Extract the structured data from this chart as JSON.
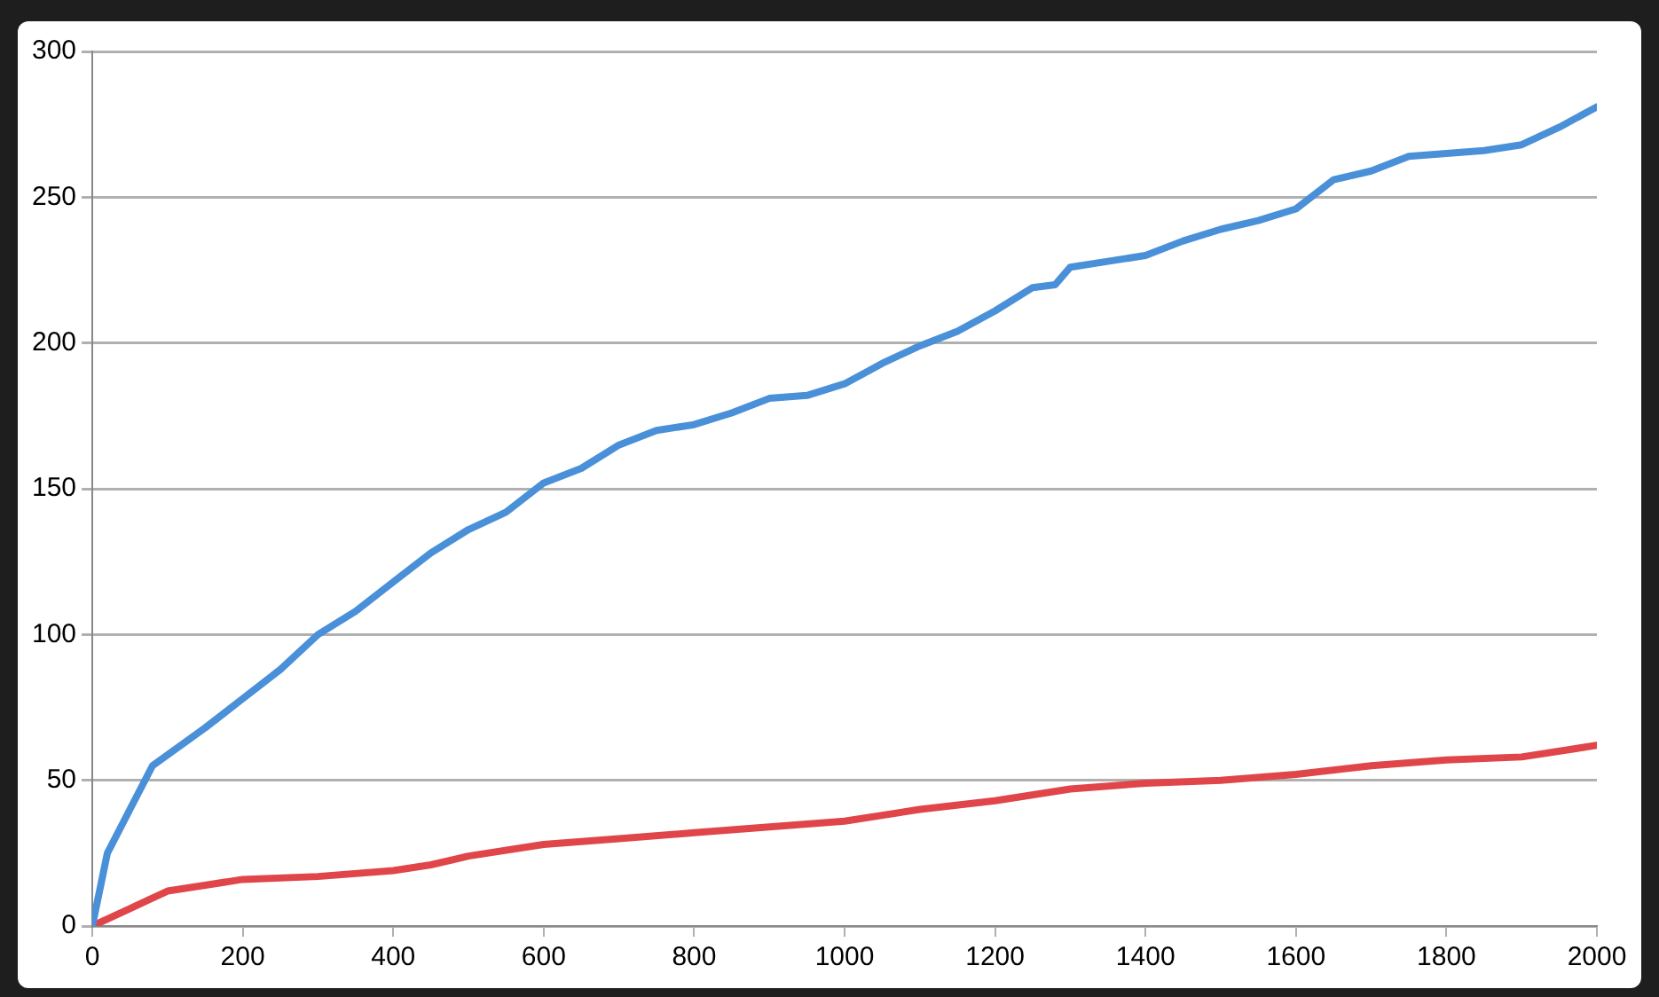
{
  "chart_data": {
    "type": "line",
    "xlim": [
      0,
      2000
    ],
    "xticks": [
      0,
      200,
      400,
      600,
      800,
      1000,
      1200,
      1400,
      1600,
      1800,
      2000
    ],
    "ylim": [
      0,
      300
    ],
    "yticks": [
      0,
      50,
      100,
      150,
      200,
      250,
      300
    ],
    "grid": "y",
    "marker": "none",
    "series": [
      {
        "color": "#4a90d9",
        "x": [
          0,
          20,
          50,
          80,
          150,
          200,
          250,
          300,
          350,
          400,
          450,
          500,
          550,
          600,
          650,
          700,
          750,
          800,
          850,
          900,
          950,
          1000,
          1050,
          1100,
          1150,
          1200,
          1250,
          1280,
          1300,
          1350,
          1400,
          1450,
          1500,
          1550,
          1600,
          1650,
          1700,
          1750,
          1800,
          1850,
          1900,
          1950,
          2000
        ],
        "values": [
          0,
          25,
          40,
          55,
          68,
          78,
          88,
          100,
          108,
          118,
          128,
          136,
          142,
          152,
          157,
          165,
          170,
          172,
          176,
          181,
          182,
          186,
          193,
          199,
          204,
          211,
          219,
          220,
          226,
          228,
          230,
          235,
          239,
          242,
          246,
          256,
          259,
          264,
          265,
          266,
          268,
          274,
          281
        ]
      },
      {
        "color": "#e0454a",
        "x": [
          0,
          50,
          100,
          150,
          200,
          300,
          400,
          450,
          500,
          600,
          700,
          800,
          900,
          1000,
          1100,
          1200,
          1300,
          1400,
          1500,
          1600,
          1700,
          1800,
          1900,
          2000
        ],
        "values": [
          0,
          6,
          12,
          14,
          16,
          17,
          19,
          21,
          24,
          28,
          30,
          32,
          34,
          36,
          40,
          43,
          47,
          49,
          50,
          52,
          55,
          57,
          58,
          62
        ]
      }
    ]
  }
}
